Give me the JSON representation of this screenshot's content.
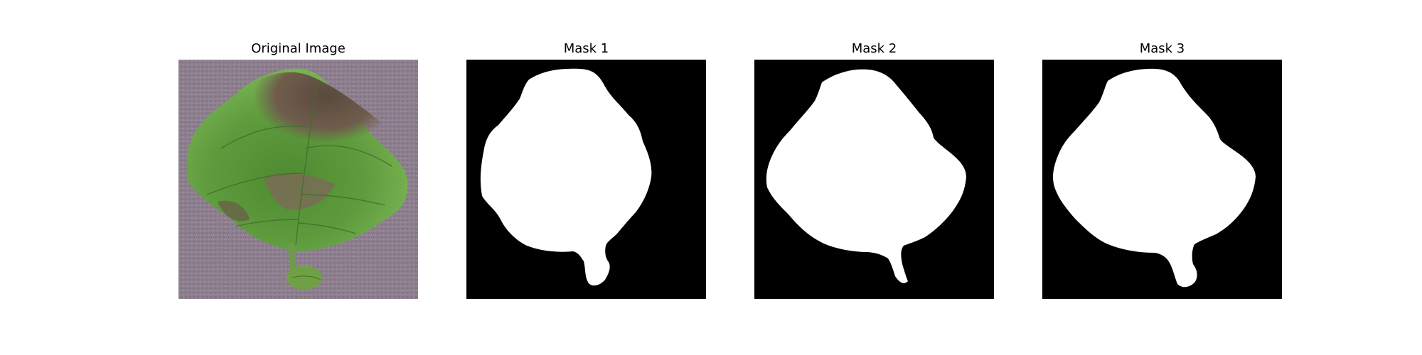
{
  "panels": [
    {
      "title": "Original Image"
    },
    {
      "title": "Mask 1"
    },
    {
      "title": "Mask 2"
    },
    {
      "title": "Mask 3"
    }
  ],
  "colors": {
    "background": "#ffffff",
    "mask_background": "#000000",
    "mask_foreground": "#ffffff",
    "photo_backdrop": "#8e7f8f",
    "leaf_green": "#5f9a3c",
    "leaf_diseased": "#6e5a48"
  }
}
